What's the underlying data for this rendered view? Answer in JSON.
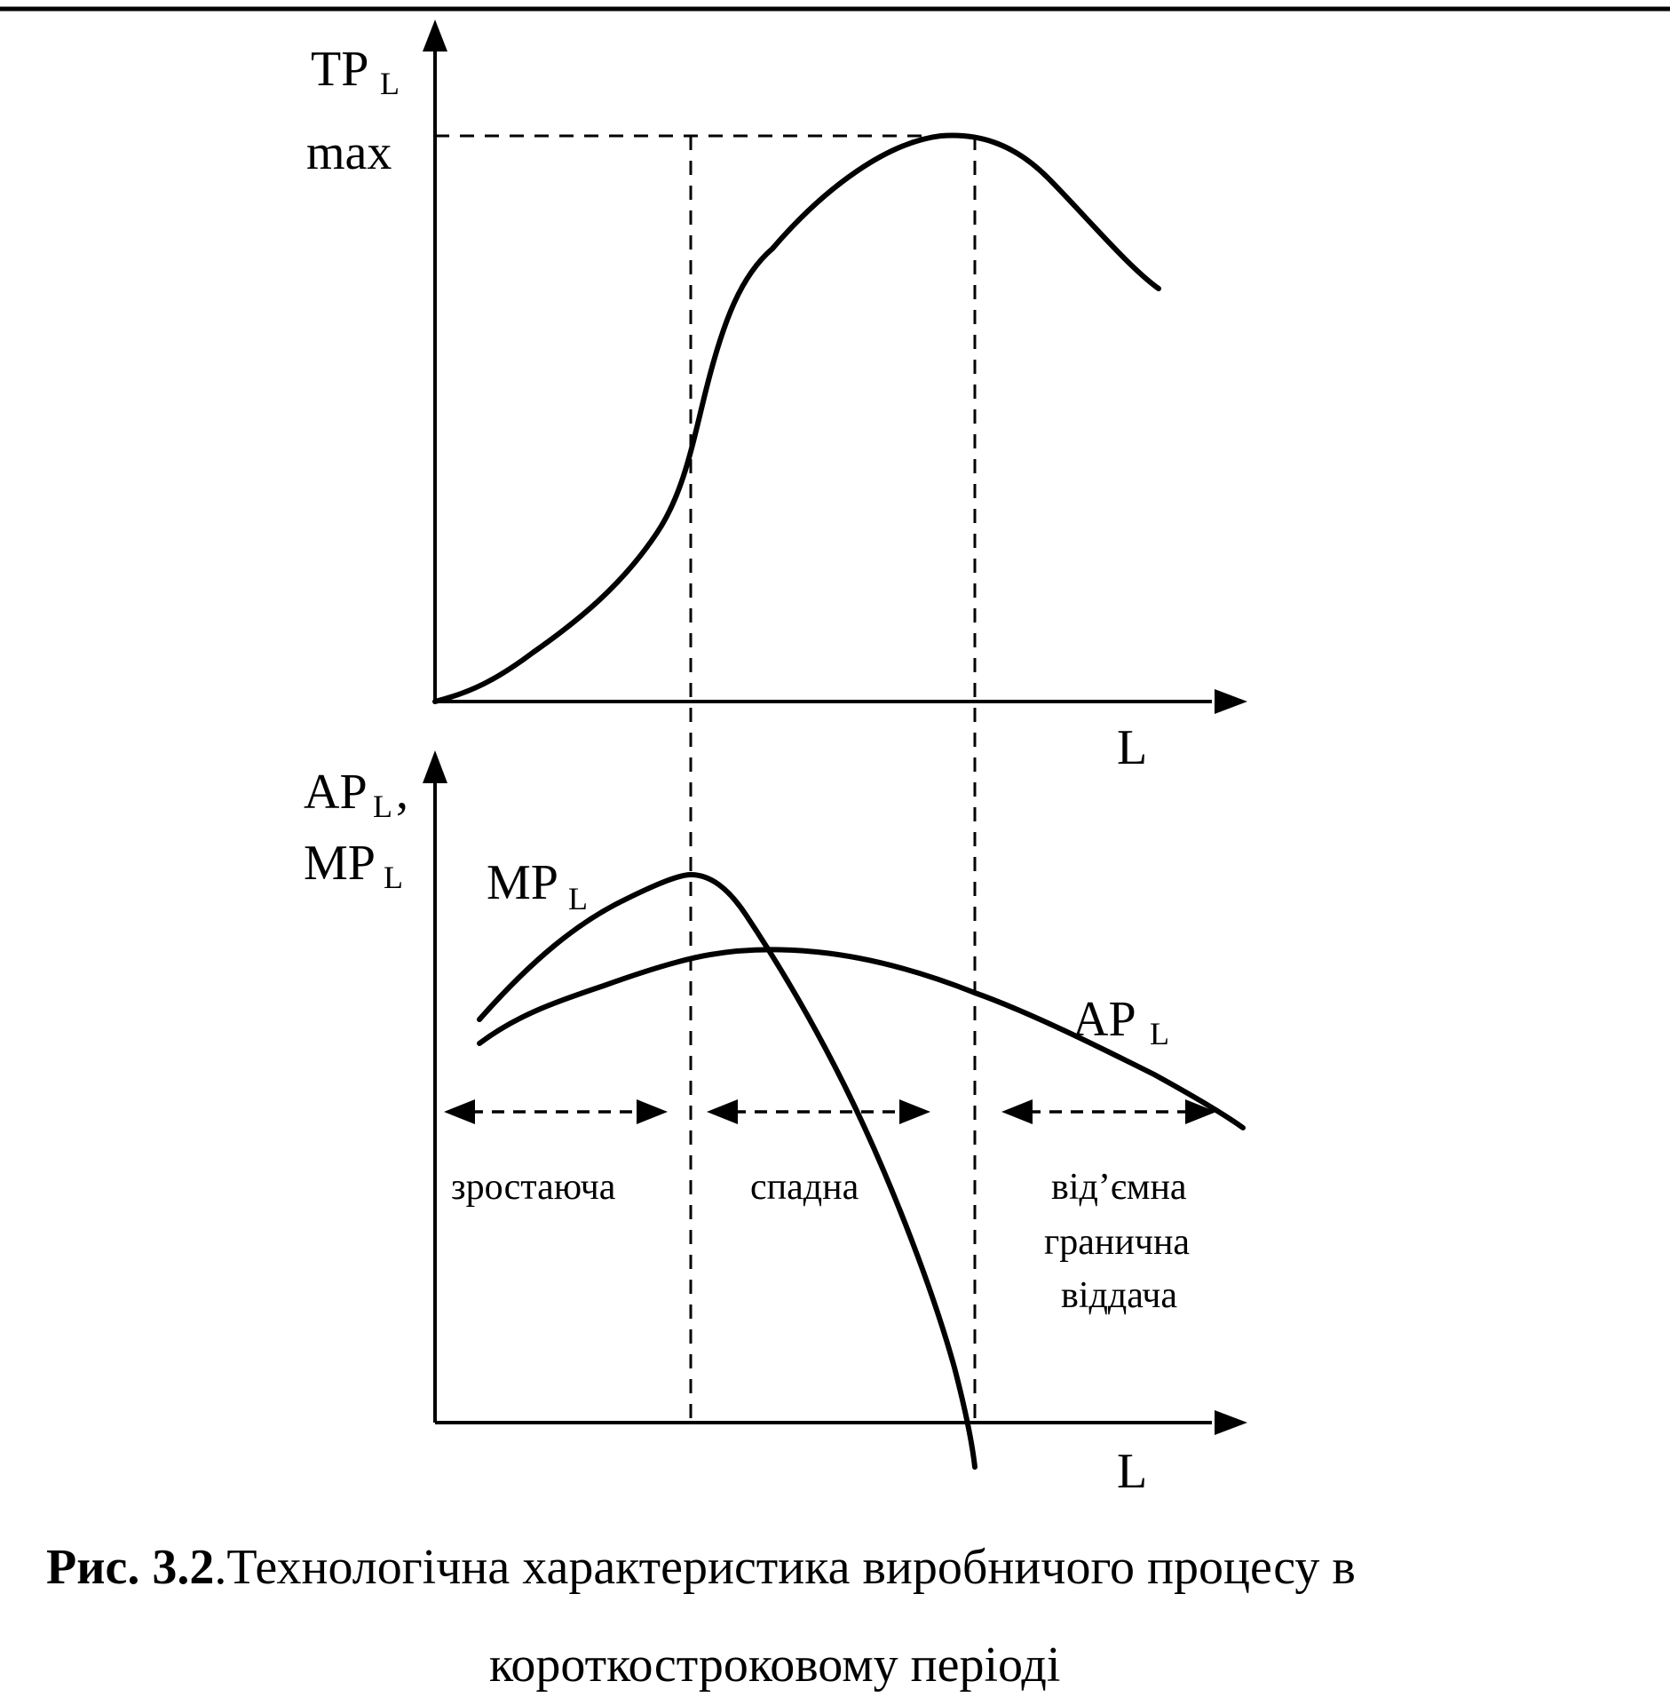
{
  "top_chart": {
    "y_axis_label": "TP",
    "y_axis_sub": "L",
    "max_label": "max",
    "x_axis_label": "L"
  },
  "bottom_chart": {
    "y_axis_label_ap": "AP",
    "y_axis_sub_ap": "L",
    "y_axis_label_sep": ",",
    "y_axis_label_mp": "MP",
    "y_axis_sub_mp": "L",
    "mp_curve_label": "MP",
    "mp_curve_sub": "L",
    "ap_curve_label": "AP",
    "ap_curve_sub": "L",
    "x_axis_label": "L",
    "regions": {
      "increasing": "зростаюча",
      "decreasing": "спадна",
      "negative_line1": "від’ємна",
      "negative_line2": "гранична",
      "negative_line3": "віддача"
    }
  },
  "caption": {
    "figure_number": "Рис. 3.2",
    "line1": ".Технологічна характеристика виробничого процесу в",
    "line2": "короткостроковому періоді"
  }
}
